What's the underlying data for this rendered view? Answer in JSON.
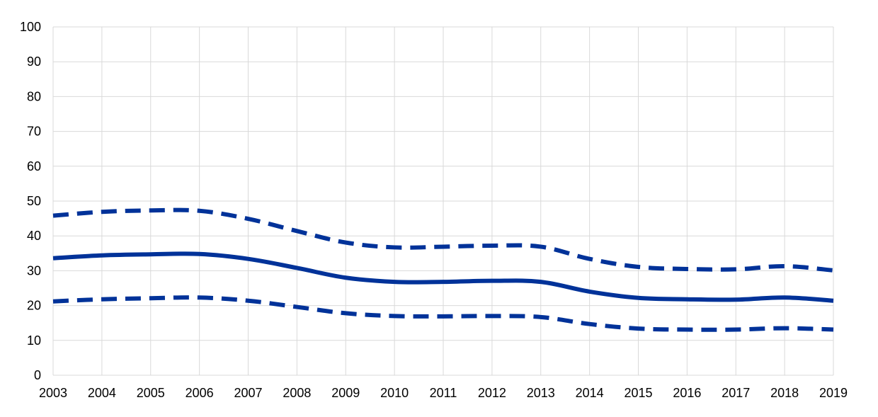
{
  "chart_data": {
    "type": "line",
    "title": "",
    "xlabel": "",
    "ylabel": "",
    "x": [
      2003,
      2004,
      2005,
      2006,
      2007,
      2008,
      2009,
      2010,
      2011,
      2012,
      2013,
      2014,
      2015,
      2016,
      2017,
      2018,
      2019
    ],
    "ylim": [
      0,
      100
    ],
    "yticks": [
      0,
      10,
      20,
      30,
      40,
      50,
      60,
      70,
      80,
      90,
      100
    ],
    "grid": true,
    "legend": "none",
    "line_color": "#003299",
    "series": [
      {
        "style": "dashed",
        "values": [
          45.8,
          46.9,
          47.3,
          47.2,
          44.9,
          41.4,
          38.1,
          36.7,
          36.9,
          37.2,
          36.9,
          33.4,
          31.1,
          30.5,
          30.4,
          31.3,
          30.1
        ]
      },
      {
        "style": "solid",
        "values": [
          33.6,
          34.4,
          34.7,
          34.8,
          33.4,
          30.8,
          28.0,
          26.8,
          26.8,
          27.1,
          26.8,
          24.0,
          22.2,
          21.8,
          21.7,
          22.3,
          21.4
        ]
      },
      {
        "style": "dashed",
        "values": [
          21.2,
          21.8,
          22.1,
          22.3,
          21.4,
          19.6,
          17.8,
          17.0,
          16.9,
          17.0,
          16.7,
          14.7,
          13.4,
          13.1,
          13.1,
          13.5,
          13.1
        ]
      }
    ]
  }
}
